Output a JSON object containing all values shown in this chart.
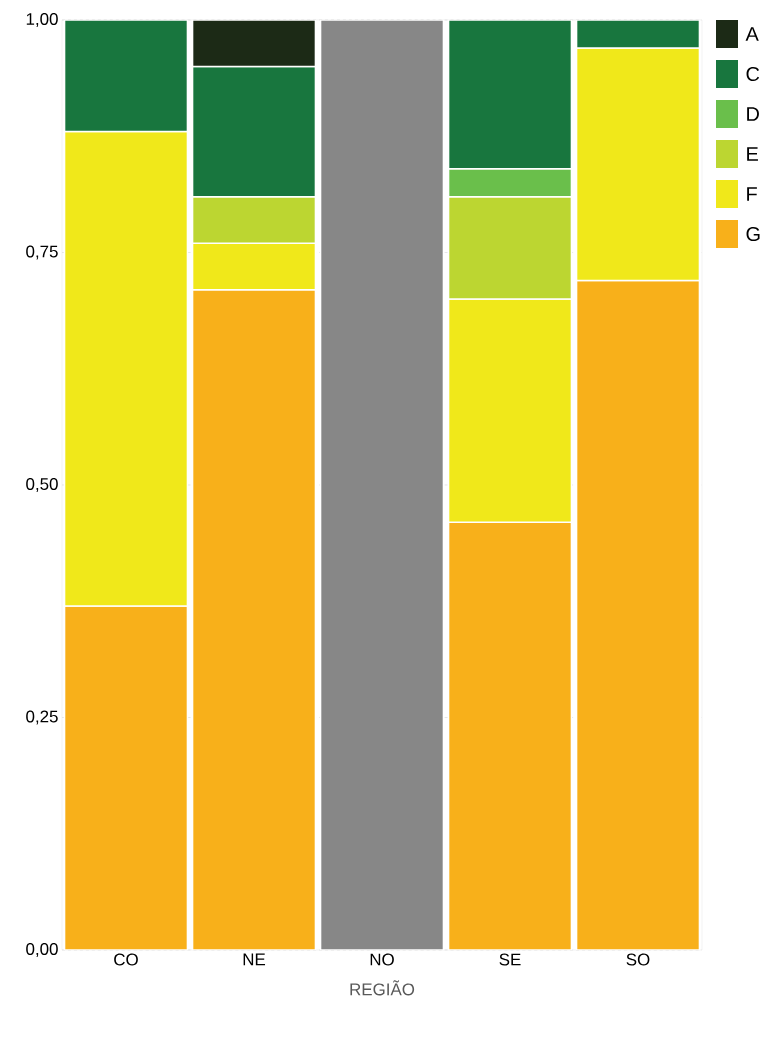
{
  "chart_data": {
    "type": "bar",
    "stacked": true,
    "xlabel": "REGIÃO",
    "categories": [
      "CO",
      "NE",
      "NO",
      "SE",
      "SO"
    ],
    "series": [
      {
        "name": "G",
        "color": "#f8b01a",
        "values": [
          0.37,
          0.71,
          null,
          0.46,
          0.72
        ]
      },
      {
        "name": "F",
        "color": "#f0e81a",
        "values": [
          0.51,
          0.05,
          null,
          0.24,
          0.25
        ]
      },
      {
        "name": "E",
        "color": "#bcd631",
        "values": [
          null,
          0.05,
          null,
          0.11,
          null
        ]
      },
      {
        "name": "D",
        "color": "#6abf4b",
        "values": [
          null,
          null,
          null,
          0.03,
          null
        ]
      },
      {
        "name": "C",
        "color": "#18763e",
        "values": [
          0.12,
          0.14,
          null,
          0.16,
          0.03
        ]
      },
      {
        "name": "A",
        "color": "#1c2a16",
        "values": [
          null,
          0.05,
          null,
          null,
          null
        ]
      },
      {
        "color": "#878787",
        "values": [
          null,
          null,
          1,
          null,
          null
        ]
      }
    ],
    "ylim": [
      0,
      1
    ],
    "yticks": [
      {
        "value": 0,
        "label": "0,00"
      },
      {
        "value": 0.25,
        "label": "0,25"
      },
      {
        "value": 0.5,
        "label": "0,50"
      },
      {
        "value": 0.75,
        "label": "0,75"
      },
      {
        "value": 1,
        "label": "1,00"
      }
    ],
    "grid": "y",
    "legend": "right"
  }
}
